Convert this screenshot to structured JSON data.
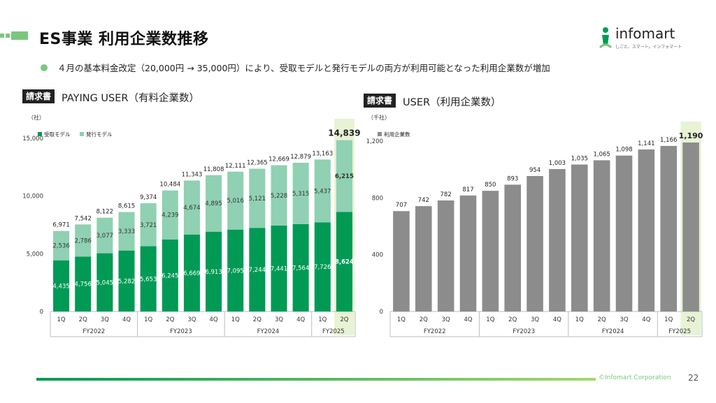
{
  "header": {
    "title": "ES事業 利用企業数推移",
    "logo_text": "infomart",
    "logo_tagline": "しごと、スマート。インフォマート",
    "bullet": "４月の基本料金改定（20,000円 → 35,000円）により、受取モデルと発行モデルの両方が利用可能となった利用企業数が増加"
  },
  "left_chart": {
    "tag": "請求書",
    "title": "PAYING USER（有料企業数）",
    "unit": "（社）"
  },
  "right_chart": {
    "tag": "請求書",
    "title": "USER（利用企業数）",
    "unit": "（千社）"
  },
  "colors": {
    "accent_green": "#009a55",
    "light_green": "#8fd1b2",
    "gray_bar": "#8c8c8c",
    "highlight": "#e7f3d4",
    "bullet": "#7bc67e"
  },
  "chart_data": [
    {
      "type": "bar",
      "stacked": true,
      "categories": [
        "1Q",
        "2Q",
        "3Q",
        "4Q",
        "1Q",
        "2Q",
        "3Q",
        "4Q",
        "1Q",
        "2Q",
        "3Q",
        "4Q",
        "1Q",
        "2Q"
      ],
      "groups": [
        {
          "label": "FY2022",
          "count": 4
        },
        {
          "label": "FY2023",
          "count": 4
        },
        {
          "label": "FY2024",
          "count": 4
        },
        {
          "label": "FY2025",
          "count": 2
        }
      ],
      "series": [
        {
          "name": "受取モデル",
          "values": [
            4435,
            4756,
            5045,
            5282,
            5653,
            6245,
            6669,
            6913,
            7095,
            7244,
            7441,
            7564,
            7726,
            8624
          ]
        },
        {
          "name": "発行モデル",
          "values": [
            2536,
            2786,
            3077,
            3333,
            3721,
            4239,
            4674,
            4895,
            5016,
            5121,
            5228,
            5315,
            5437,
            6215
          ]
        }
      ],
      "totals": [
        6971,
        7542,
        8122,
        8615,
        9374,
        10484,
        11343,
        11808,
        12111,
        12365,
        12669,
        12879,
        13163,
        14839
      ],
      "segment_labels": [
        [
          "4,435",
          "4,756",
          "5,045",
          "5,282",
          "5,653",
          "6,245",
          "6,669",
          "6,913",
          "7,095",
          "7,244",
          "7,441",
          "7,564",
          "7,726",
          "8,624"
        ],
        [
          "2,536",
          "2,786",
          "3,077",
          "3,333",
          "3,721",
          "4,239",
          "4,674",
          "4,895",
          "5,016",
          "5,121",
          "5,228",
          "5,315",
          "5,437",
          "6,215"
        ]
      ],
      "total_labels": [
        "6,971",
        "7,542",
        "8,122",
        "8,615",
        "9,374",
        "10,484",
        "11,343",
        "11,808",
        "12,111",
        "12,365",
        "12,669",
        "12,879",
        "13,163",
        "14,839"
      ],
      "yticks": [
        0,
        5000,
        10000,
        15000
      ],
      "ytick_labels": [
        "0",
        "5,000",
        "10,000",
        "15,000"
      ],
      "ylim": [
        0,
        15000
      ],
      "legend_position": "top-left",
      "highlight_last": true
    },
    {
      "type": "bar",
      "stacked": false,
      "categories": [
        "1Q",
        "2Q",
        "3Q",
        "4Q",
        "1Q",
        "2Q",
        "3Q",
        "4Q",
        "1Q",
        "2Q",
        "3Q",
        "4Q",
        "1Q",
        "2Q"
      ],
      "groups": [
        {
          "label": "FY2022",
          "count": 4
        },
        {
          "label": "FY2023",
          "count": 4
        },
        {
          "label": "FY2024",
          "count": 4
        },
        {
          "label": "FY2025",
          "count": 2
        }
      ],
      "series": [
        {
          "name": "利用企業数",
          "values": [
            707,
            742,
            782,
            817,
            850,
            893,
            954,
            1003,
            1035,
            1065,
            1098,
            1141,
            1166,
            1190
          ]
        }
      ],
      "value_labels": [
        "707",
        "742",
        "782",
        "817",
        "850",
        "893",
        "954",
        "1,003",
        "1,035",
        "1,065",
        "1,098",
        "1,141",
        "1,166",
        "1,190"
      ],
      "yticks": [
        0,
        400,
        800,
        1200
      ],
      "ytick_labels": [
        "0",
        "400",
        "800",
        "1,200"
      ],
      "ylim": [
        0,
        1200
      ],
      "legend_position": "top-left",
      "highlight_last": true
    }
  ],
  "footer": {
    "corp": "©Infomart Corporation",
    "page": "22"
  }
}
